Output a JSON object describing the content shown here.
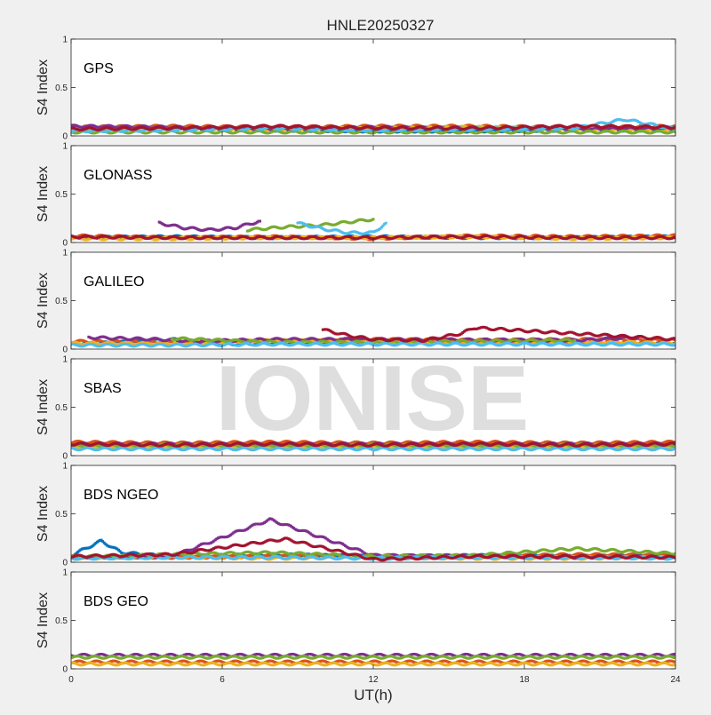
{
  "figure_title": "HNLE20250327",
  "watermark": "IONISE",
  "colors": {
    "series": [
      "#0072BD",
      "#D95319",
      "#EDB120",
      "#7E2F8E",
      "#77AC30",
      "#4DBEEE",
      "#A2142F"
    ],
    "axes": "#262626",
    "background": "#f0f0f0",
    "panel": "#ffffff",
    "watermark": "#d9d9d9"
  },
  "chart_data": [
    {
      "type": "scatter",
      "title": "GPS",
      "xlabel": "",
      "ylabel": "S4 Index",
      "xlim": [
        0,
        24
      ],
      "ylim": [
        0,
        1
      ],
      "xticks": [
        0,
        6,
        12,
        18,
        24
      ],
      "xtick_labels": [
        "",
        "",
        "",
        "",
        ""
      ],
      "yticks": [
        0,
        0.5,
        1
      ],
      "ytick_labels": [
        "0",
        "0.5",
        "1"
      ],
      "grid": false,
      "series": [
        {
          "color": "#0072BD",
          "x": [
            0,
            4,
            8,
            12,
            16,
            20,
            24
          ],
          "y": [
            0.06,
            0.07,
            0.06,
            0.05,
            0.05,
            0.06,
            0.06
          ]
        },
        {
          "color": "#D95319",
          "x": [
            0,
            4,
            8,
            12,
            16,
            20,
            24
          ],
          "y": [
            0.09,
            0.1,
            0.09,
            0.1,
            0.1,
            0.09,
            0.1
          ]
        },
        {
          "color": "#EDB120",
          "x": [
            0,
            4,
            8,
            12,
            16,
            20,
            24
          ],
          "y": [
            0.08,
            0.07,
            0.06,
            0.08,
            0.09,
            0.07,
            0.06
          ]
        },
        {
          "color": "#7E2F8E",
          "x": [
            0,
            4,
            8,
            12,
            16,
            20,
            24
          ],
          "y": [
            0.1,
            0.09,
            0.07,
            0.09,
            0.08,
            0.07,
            0.08
          ]
        },
        {
          "color": "#77AC30",
          "x": [
            0,
            4,
            8,
            12,
            16,
            20,
            24
          ],
          "y": [
            0.04,
            0.04,
            0.04,
            0.04,
            0.04,
            0.04,
            0.04
          ]
        },
        {
          "color": "#4DBEEE",
          "x": [
            0,
            4,
            8,
            12,
            16,
            20,
            22,
            24
          ],
          "y": [
            0.05,
            0.06,
            0.08,
            0.06,
            0.07,
            0.08,
            0.17,
            0.07
          ]
        },
        {
          "color": "#A2142F",
          "x": [
            0,
            4,
            8,
            12,
            16,
            20,
            24
          ],
          "y": [
            0.07,
            0.08,
            0.1,
            0.08,
            0.08,
            0.1,
            0.09
          ]
        }
      ]
    },
    {
      "type": "scatter",
      "title": "GLONASS",
      "xlabel": "",
      "ylabel": "S4 Index",
      "xlim": [
        0,
        24
      ],
      "ylim": [
        0,
        1
      ],
      "xticks": [
        0,
        6,
        12,
        18,
        24
      ],
      "xtick_labels": [
        "",
        "",
        "",
        "",
        ""
      ],
      "yticks": [
        0,
        0.5,
        1
      ],
      "ytick_labels": [
        "0",
        "0.5",
        "1"
      ],
      "grid": false,
      "series": [
        {
          "color": "#0072BD",
          "x": [
            0,
            4,
            8,
            12,
            16,
            20,
            24
          ],
          "y": [
            0.05,
            0.06,
            0.05,
            0.06,
            0.05,
            0.05,
            0.06
          ]
        },
        {
          "color": "#D95319",
          "x": [
            0,
            4,
            8,
            12,
            16,
            20,
            24
          ],
          "y": [
            0.07,
            0.05,
            0.06,
            0.04,
            0.07,
            0.06,
            0.07
          ]
        },
        {
          "color": "#EDB120",
          "x": [
            0,
            4,
            8,
            12,
            16,
            20,
            24
          ],
          "y": [
            0.04,
            0.04,
            0.05,
            0.05,
            0.06,
            0.04,
            0.05
          ]
        },
        {
          "color": "#7E2F8E",
          "x": [
            3.5,
            4.5,
            5.5,
            6.5,
            7.5
          ],
          "y": [
            0.2,
            0.15,
            0.13,
            0.15,
            0.22
          ]
        },
        {
          "color": "#77AC30",
          "x": [
            7,
            8.5,
            10,
            11,
            12
          ],
          "y": [
            0.13,
            0.16,
            0.18,
            0.21,
            0.24
          ]
        },
        {
          "color": "#4DBEEE",
          "x": [
            9,
            10,
            11,
            12,
            12.5
          ],
          "y": [
            0.2,
            0.14,
            0.1,
            0.1,
            0.2
          ]
        },
        {
          "color": "#A2142F",
          "x": [
            0,
            4,
            8,
            12,
            16,
            20,
            24
          ],
          "y": [
            0.06,
            0.05,
            0.05,
            0.05,
            0.06,
            0.05,
            0.05
          ]
        }
      ]
    },
    {
      "type": "scatter",
      "title": "GALILEO",
      "xlabel": "",
      "ylabel": "S4 Index",
      "xlim": [
        0,
        24
      ],
      "ylim": [
        0,
        1
      ],
      "xticks": [
        0,
        6,
        12,
        18,
        24
      ],
      "xtick_labels": [
        "",
        "",
        "",
        "",
        ""
      ],
      "yticks": [
        0,
        0.5,
        1
      ],
      "ytick_labels": [
        "0",
        "0.5",
        "1"
      ],
      "grid": false,
      "series": [
        {
          "color": "#0072BD",
          "x": [
            0,
            2,
            4,
            6,
            8,
            12,
            16,
            20,
            24
          ],
          "y": [
            0.05,
            0.07,
            0.1,
            0.05,
            0.06,
            0.06,
            0.07,
            0.06,
            0.06
          ]
        },
        {
          "color": "#D95319",
          "x": [
            0,
            4,
            8,
            12,
            16,
            20,
            24
          ],
          "y": [
            0.08,
            0.07,
            0.08,
            0.1,
            0.09,
            0.1,
            0.09
          ]
        },
        {
          "color": "#EDB120",
          "x": [
            0,
            4,
            8,
            12,
            16,
            20,
            24
          ],
          "y": [
            0.06,
            0.06,
            0.09,
            0.08,
            0.07,
            0.08,
            0.06
          ]
        },
        {
          "color": "#7E2F8E",
          "x": [
            0.7,
            2,
            3.5,
            5,
            8,
            12,
            20,
            22.5
          ],
          "y": [
            0.12,
            0.11,
            0.1,
            0.08,
            0.1,
            0.1,
            0.09,
            0.12
          ]
        },
        {
          "color": "#77AC30",
          "x": [
            4,
            8,
            12,
            16,
            20
          ],
          "y": [
            0.11,
            0.07,
            0.07,
            0.08,
            0.09
          ]
        },
        {
          "color": "#4DBEEE",
          "x": [
            0,
            4,
            8,
            12,
            16,
            20,
            24
          ],
          "y": [
            0.04,
            0.04,
            0.05,
            0.05,
            0.05,
            0.05,
            0.05
          ]
        },
        {
          "color": "#A2142F",
          "x": [
            10,
            11,
            12,
            14,
            15.5,
            16,
            24
          ],
          "y": [
            0.2,
            0.14,
            0.1,
            0.09,
            0.16,
            0.22,
            0.1
          ]
        }
      ]
    },
    {
      "type": "scatter",
      "title": "SBAS",
      "xlabel": "",
      "ylabel": "S4 Index",
      "xlim": [
        0,
        24
      ],
      "ylim": [
        0,
        1
      ],
      "xticks": [
        0,
        6,
        12,
        18,
        24
      ],
      "xtick_labels": [
        "",
        "",
        "",
        "",
        ""
      ],
      "yticks": [
        0,
        0.5,
        1
      ],
      "ytick_labels": [
        "0",
        "0.5",
        "1"
      ],
      "grid": false,
      "series": [
        {
          "color": "#0072BD",
          "x": [
            0,
            4,
            8,
            12,
            16,
            20,
            24
          ],
          "y": [
            0.11,
            0.1,
            0.11,
            0.1,
            0.11,
            0.1,
            0.11
          ]
        },
        {
          "color": "#D95319",
          "x": [
            0,
            4,
            8,
            12,
            16,
            20,
            24
          ],
          "y": [
            0.14,
            0.13,
            0.14,
            0.13,
            0.14,
            0.13,
            0.14
          ]
        },
        {
          "color": "#EDB120",
          "x": [
            0,
            4,
            8,
            12,
            16,
            20,
            24
          ],
          "y": [
            0.09,
            0.1,
            0.09,
            0.1,
            0.09,
            0.1,
            0.09
          ]
        },
        {
          "color": "#7E2F8E",
          "x": [
            0,
            4,
            8,
            12,
            16,
            20,
            24
          ],
          "y": [
            0.12,
            0.12,
            0.12,
            0.12,
            0.12,
            0.12,
            0.12
          ]
        },
        {
          "color": "#77AC30",
          "x": [
            0,
            4,
            8,
            12,
            16,
            20,
            24
          ],
          "y": [
            0.1,
            0.11,
            0.1,
            0.11,
            0.1,
            0.11,
            0.1
          ]
        },
        {
          "color": "#4DBEEE",
          "x": [
            0,
            4,
            8,
            12,
            16,
            20,
            24
          ],
          "y": [
            0.07,
            0.07,
            0.07,
            0.07,
            0.07,
            0.07,
            0.07
          ]
        },
        {
          "color": "#A2142F",
          "x": [
            0,
            4,
            8,
            12,
            16,
            20,
            24
          ],
          "y": [
            0.12,
            0.11,
            0.12,
            0.11,
            0.12,
            0.11,
            0.12
          ]
        }
      ]
    },
    {
      "type": "scatter",
      "title": "BDS NGEO",
      "xlabel": "",
      "ylabel": "S4 Index",
      "xlim": [
        0,
        24
      ],
      "ylim": [
        0,
        1
      ],
      "xticks": [
        0,
        6,
        12,
        18,
        24
      ],
      "xtick_labels": [
        "",
        "",
        "",
        "",
        ""
      ],
      "yticks": [
        0,
        0.5,
        1
      ],
      "ytick_labels": [
        "0",
        "0.5",
        "1"
      ],
      "grid": false,
      "series": [
        {
          "color": "#0072BD",
          "x": [
            0,
            1.2,
            2,
            4,
            8,
            12,
            16,
            20,
            24
          ],
          "y": [
            0.07,
            0.22,
            0.1,
            0.06,
            0.08,
            0.06,
            0.07,
            0.06,
            0.07
          ]
        },
        {
          "color": "#D95319",
          "x": [
            0,
            4,
            8,
            12,
            16,
            20,
            24
          ],
          "y": [
            0.06,
            0.05,
            0.06,
            0.07,
            0.06,
            0.08,
            0.07
          ]
        },
        {
          "color": "#EDB120",
          "x": [
            0,
            4,
            8,
            12,
            16,
            20,
            24
          ],
          "y": [
            0.04,
            0.05,
            0.04,
            0.05,
            0.04,
            0.04,
            0.05
          ]
        },
        {
          "color": "#7E2F8E",
          "x": [
            0,
            4,
            7.9,
            12,
            16,
            20,
            24
          ],
          "y": [
            0.05,
            0.06,
            0.44,
            0.07,
            0.06,
            0.05,
            0.06
          ]
        },
        {
          "color": "#77AC30",
          "x": [
            0,
            4,
            8,
            12,
            16,
            20,
            24
          ],
          "y": [
            0.05,
            0.08,
            0.1,
            0.06,
            0.07,
            0.14,
            0.09
          ]
        },
        {
          "color": "#4DBEEE",
          "x": [
            0,
            4,
            8,
            12,
            16,
            20,
            24
          ],
          "y": [
            0.04,
            0.05,
            0.05,
            0.04,
            0.05,
            0.05,
            0.04
          ]
        },
        {
          "color": "#A2142F",
          "x": [
            0,
            4,
            8.5,
            12,
            16,
            20,
            24
          ],
          "y": [
            0.06,
            0.08,
            0.24,
            0.03,
            0.06,
            0.06,
            0.05
          ]
        }
      ]
    },
    {
      "type": "scatter",
      "title": "BDS GEO",
      "xlabel": "UT(h)",
      "ylabel": "S4 Index",
      "xlim": [
        0,
        24
      ],
      "ylim": [
        0,
        1
      ],
      "xticks": [
        0,
        6,
        12,
        18,
        24
      ],
      "xtick_labels": [
        "0",
        "6",
        "12",
        "18",
        "24"
      ],
      "yticks": [
        0,
        0.5,
        1
      ],
      "ytick_labels": [
        "0",
        "0.5",
        "1"
      ],
      "grid": false,
      "series": [
        {
          "color": "#D95319",
          "x": [
            0,
            4,
            8,
            12,
            16,
            20,
            24
          ],
          "y": [
            0.07,
            0.07,
            0.07,
            0.07,
            0.07,
            0.07,
            0.07
          ]
        },
        {
          "color": "#EDB120",
          "x": [
            0,
            4,
            8,
            12,
            16,
            20,
            24
          ],
          "y": [
            0.05,
            0.05,
            0.05,
            0.05,
            0.05,
            0.05,
            0.05
          ]
        },
        {
          "color": "#7E2F8E",
          "x": [
            0,
            4,
            8,
            12,
            16,
            20,
            24
          ],
          "y": [
            0.14,
            0.14,
            0.14,
            0.14,
            0.14,
            0.14,
            0.14
          ]
        },
        {
          "color": "#77AC30",
          "x": [
            0,
            4,
            8,
            12,
            16,
            20,
            24
          ],
          "y": [
            0.12,
            0.12,
            0.12,
            0.12,
            0.12,
            0.12,
            0.12
          ]
        }
      ]
    }
  ]
}
